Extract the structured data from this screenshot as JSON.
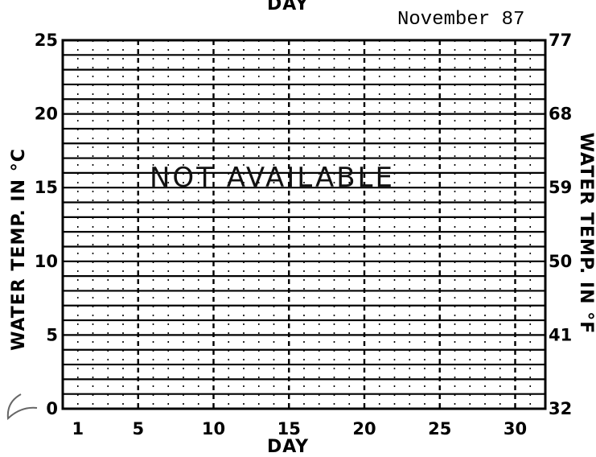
{
  "header": {
    "top_axis_label": "DAY",
    "month": "November 87"
  },
  "chart_data": {
    "type": "line",
    "title": "November 87",
    "xlabel": "DAY",
    "ylabel": "WATER TEMP. IN °C",
    "ylabel_right": "WATER TEMP. IN °F",
    "xlim": [
      0,
      32
    ],
    "ylim": [
      0,
      25
    ],
    "x_ticks": [
      1,
      5,
      10,
      15,
      20,
      25,
      30
    ],
    "y_ticks": [
      0,
      5,
      10,
      15,
      20,
      25
    ],
    "y_ticks_right": [
      32,
      41,
      50,
      59,
      68,
      77
    ],
    "grid": true,
    "annotation": "NOT AVAILABLE",
    "series": []
  }
}
